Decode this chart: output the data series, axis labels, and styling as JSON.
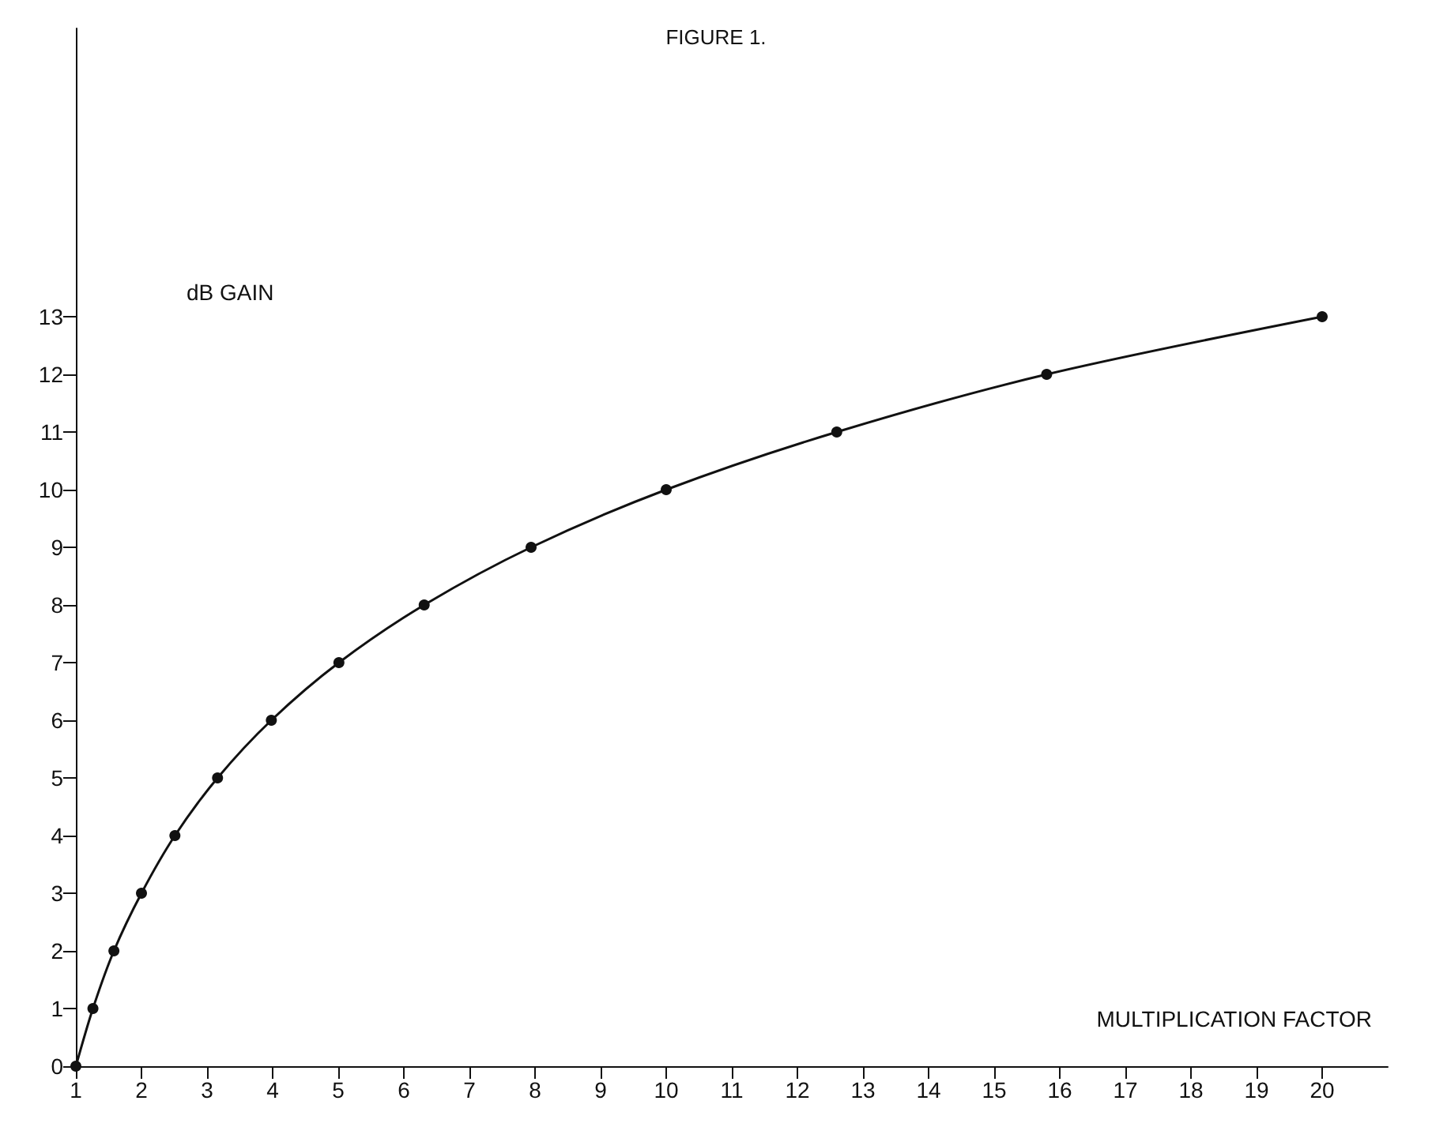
{
  "chart_data": {
    "type": "line",
    "title": "FIGURE 1.",
    "xlabel": "MULTIPLICATION FACTOR",
    "ylabel": "dB GAIN",
    "x": [
      1,
      1.26,
      1.58,
      2,
      2.51,
      3.16,
      3.98,
      5.01,
      6.31,
      7.94,
      10,
      12.6,
      15.8,
      20
    ],
    "series": [
      {
        "color": "#111111",
        "values": [
          0,
          1,
          2,
          3,
          4,
          5,
          6,
          7,
          8,
          9,
          10,
          11,
          12,
          13
        ]
      }
    ],
    "xlim": [
      1,
      21
    ],
    "xticks": [
      1,
      2,
      3,
      4,
      5,
      6,
      7,
      8,
      9,
      10,
      11,
      12,
      13,
      14,
      15,
      16,
      17,
      18,
      19,
      20
    ],
    "ylim": [
      0,
      18
    ],
    "yticks": [
      0,
      1,
      2,
      3,
      4,
      5,
      6,
      7,
      8,
      9,
      10,
      11,
      12,
      13
    ],
    "marker": "circle",
    "line_style": "solid"
  }
}
